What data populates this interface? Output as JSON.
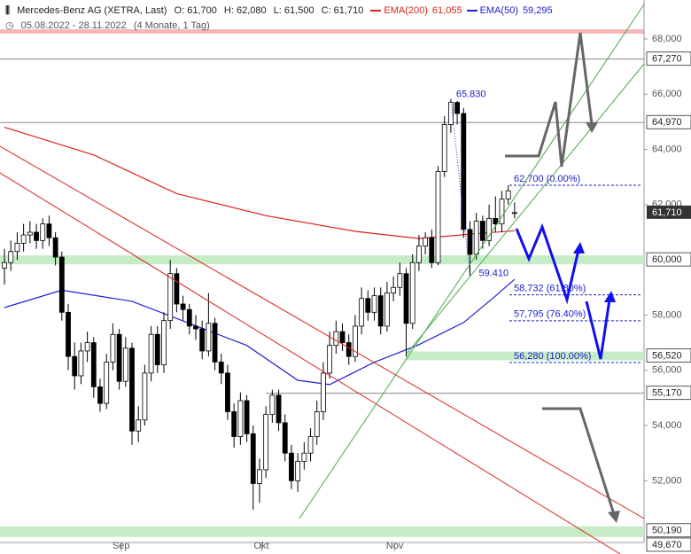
{
  "chart_data": {
    "type": "candlestick",
    "title": "Mercedes-Benz AG (XETRA, Last)",
    "header_values": [
      "O: 61,700",
      "H: 62,080",
      "L: 61,500",
      "C: 61,710"
    ],
    "subtitle": "05.08.2022 - 28.11.2022",
    "subtitle_note": "(4 Monate, 1 Tag)",
    "open": [
      59700,
      59900,
      60300,
      60600,
      60900,
      61000,
      60700,
      61300,
      60800,
      60100,
      58100,
      56500,
      55800,
      56700,
      57000,
      55400,
      54800,
      56300,
      57300,
      55600,
      56800,
      53800,
      54200,
      55900,
      57300,
      56200,
      57800,
      59500,
      58400,
      58200,
      57600,
      57500,
      56700,
      57700,
      56300,
      55900,
      54500,
      53600,
      54900,
      53700,
      51900,
      52400,
      54400,
      55100,
      54100,
      53000,
      52000,
      52700,
      53000,
      53600,
      54500,
      55900,
      56900,
      57400,
      57000,
      56500,
      57600,
      58600,
      58100,
      58700,
      57600,
      58800,
      59000,
      59500,
      57700,
      59900,
      60500,
      60800,
      59900,
      63200,
      64900,
      65700,
      65300,
      61100,
      60200,
      61400,
      60700,
      61500,
      61300,
      62200,
      61700
    ],
    "high": [
      60400,
      60700,
      61000,
      61300,
      61400,
      61300,
      61500,
      61600,
      61000,
      60300,
      58400,
      57000,
      57000,
      57400,
      57200,
      55700,
      56600,
      57700,
      57500,
      57200,
      57000,
      54700,
      56200,
      57600,
      57600,
      58100,
      60000,
      59700,
      58700,
      58400,
      58000,
      57800,
      58800,
      57900,
      56600,
      56200,
      54800,
      55200,
      55100,
      54000,
      52800,
      54700,
      55300,
      55300,
      54400,
      53300,
      53000,
      53400,
      53900,
      54900,
      56300,
      57400,
      57800,
      57700,
      57300,
      58000,
      59000,
      58900,
      59000,
      59000,
      59200,
      59400,
      59900,
      59700,
      60200,
      60900,
      61000,
      61100,
      63400,
      65200,
      65830,
      65750,
      65500,
      61400,
      61700,
      61600,
      62000,
      62300,
      62500,
      62700,
      62080
    ],
    "low": [
      59100,
      59600,
      60000,
      60300,
      60600,
      60400,
      60400,
      60500,
      59800,
      57800,
      56000,
      55300,
      55500,
      56300,
      55000,
      54500,
      54600,
      56000,
      55300,
      55400,
      53300,
      53400,
      54000,
      55600,
      55900,
      55900,
      57500,
      58100,
      57800,
      57300,
      57100,
      56400,
      56500,
      56000,
      55500,
      54200,
      53200,
      53300,
      53400,
      50950,
      51200,
      52100,
      54100,
      53800,
      52700,
      51700,
      51600,
      52400,
      52700,
      53300,
      54200,
      55700,
      56600,
      56700,
      56200,
      56300,
      57300,
      57800,
      57800,
      57300,
      57400,
      58500,
      58700,
      56500,
      57500,
      59600,
      60200,
      59700,
      59800,
      63000,
      64600,
      64900,
      60800,
      59410,
      60000,
      60400,
      60500,
      61000,
      61000,
      62000,
      61500
    ],
    "close": [
      59900,
      60300,
      60600,
      60900,
      61000,
      60700,
      61300,
      60800,
      60100,
      58100,
      56500,
      55800,
      56700,
      57000,
      55400,
      54800,
      56300,
      57300,
      55600,
      56800,
      53800,
      54200,
      55900,
      57300,
      56200,
      57800,
      59500,
      58400,
      58200,
      57600,
      57500,
      56700,
      57700,
      56300,
      55900,
      54500,
      53600,
      54900,
      53700,
      51900,
      52400,
      54400,
      55100,
      54100,
      53000,
      52000,
      52700,
      53000,
      53600,
      54500,
      55900,
      56900,
      57400,
      57000,
      56500,
      57600,
      58600,
      58100,
      58700,
      57600,
      58800,
      59000,
      59500,
      57700,
      59900,
      60500,
      60800,
      59900,
      63200,
      64900,
      65700,
      65300,
      61100,
      60200,
      61400,
      60700,
      61500,
      61300,
      62200,
      62500,
      61710
    ],
    "series": [
      {
        "name": "EMA(200)",
        "value_label": "61,055",
        "color": "#d9231c",
        "x": [
          0,
          14,
          27,
          41,
          55,
          65,
          73,
          80
        ],
        "values": [
          64800,
          63800,
          62400,
          61600,
          61030,
          60770,
          60930,
          61055
        ]
      },
      {
        "name": "EMA(50)",
        "value_label": "59,295",
        "color": "#2020d0",
        "x": [
          0,
          9,
          20,
          38,
          46,
          51,
          58,
          65,
          72,
          77,
          80
        ],
        "values": [
          58270,
          58900,
          58500,
          56900,
          55640,
          55480,
          56290,
          56930,
          57730,
          58690,
          59295
        ]
      }
    ],
    "xlim": [
      -0.7,
      100.3
    ],
    "xticks": [
      {
        "value": 18.3,
        "label": "Sep"
      },
      {
        "value": 40.3,
        "label": "Okt"
      },
      {
        "value": 61.2,
        "label": "Nov"
      }
    ],
    "ylim": [
      49700,
      68800
    ],
    "yticks": [
      {
        "value": 68000,
        "label": "68,000"
      },
      {
        "value": 66000,
        "label": "66,000"
      },
      {
        "value": 64000,
        "label": "64,000"
      },
      {
        "value": 62000,
        "label": "62,000"
      },
      {
        "value": 58000,
        "label": "58,000"
      },
      {
        "value": 56000,
        "label": "56,000"
      },
      {
        "value": 54000,
        "label": "54,000"
      },
      {
        "value": 52000,
        "label": "52,000"
      }
    ],
    "levels": [
      {
        "value": 67270,
        "label": "67,270"
      },
      {
        "value": 64970,
        "label": "64,970"
      },
      {
        "value": 60000,
        "label": "60,000"
      },
      {
        "value": 56520,
        "label": "56,520"
      },
      {
        "value": 55170,
        "label": "55,170"
      },
      {
        "value": 50190,
        "label": "50,190"
      },
      {
        "value": 49670,
        "label": "49,670"
      }
    ],
    "current": {
      "value": 61710,
      "label": "61,710"
    },
    "fib_levels": [
      {
        "value": 62700,
        "label": "62,700 (0.00%)"
      },
      {
        "value": 58732,
        "label": "58,732 (61.80%)"
      },
      {
        "value": 57795,
        "label": "57,795 (76.40%)"
      },
      {
        "value": 56280,
        "label": "56,280 (100.00%)"
      }
    ],
    "annotations": [
      {
        "value": 65830,
        "label": "65.830"
      },
      {
        "value": 59410,
        "label": "59.410"
      }
    ]
  }
}
